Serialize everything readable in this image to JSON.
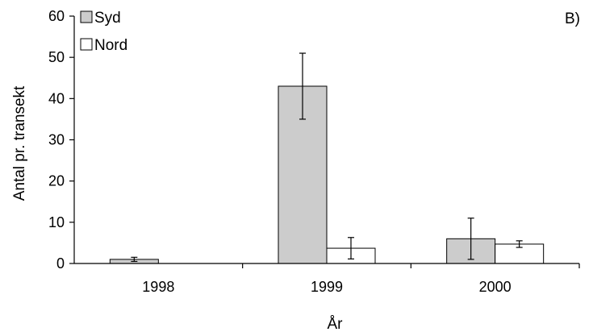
{
  "chart_data": {
    "type": "bar",
    "panel_label": "B)",
    "categories": [
      "1998",
      "1999",
      "2000"
    ],
    "series": [
      {
        "name": "Syd",
        "color": "#cccccc",
        "values": [
          1.0,
          43.0,
          6.0
        ],
        "error": [
          0.5,
          8.0,
          5.0
        ]
      },
      {
        "name": "Nord",
        "color": "#ffffff",
        "values": [
          0.0,
          3.7,
          4.7
        ],
        "error": [
          0.0,
          2.6,
          0.8
        ]
      }
    ],
    "xlabel": "År",
    "ylabel": "Antal pr. transekt",
    "ylim": [
      0,
      60
    ],
    "yticks": [
      "0",
      "10",
      "20",
      "30",
      "40",
      "50",
      "60"
    ],
    "grid": false,
    "legend_position": "top-left"
  }
}
